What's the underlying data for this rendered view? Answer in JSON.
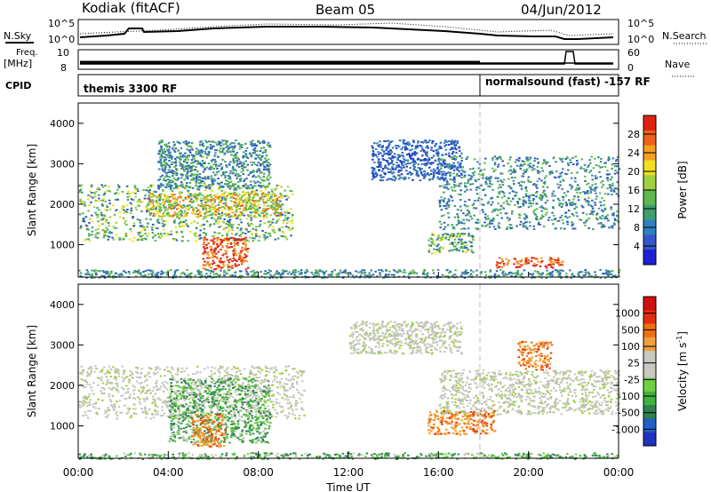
{
  "header": {
    "radar": "Kodiak (fitACF)",
    "beam": "Beam 05",
    "date": "04/Jun/2012"
  },
  "top_panels": {
    "nsky_label": "N.Sky",
    "nsky_ticks": [
      "10^5",
      "10^0"
    ],
    "nsearch_label": "N.Search",
    "nsearch_ticks": [
      "10^5",
      "10^0"
    ],
    "freq_label_1": "Freq.",
    "freq_label_2": "[MHz]",
    "freq_ticks": [
      "10",
      "8"
    ],
    "nave_label": "Nave",
    "nave_ticks": [
      "60",
      "0"
    ],
    "cpid_label": "CPID",
    "cpid_segments": [
      {
        "label": "themis 3300 RF",
        "start": "00:00",
        "end": "18:00"
      },
      {
        "label": "normalsound (fast) -157 RF",
        "start": "18:00",
        "end": "24:00"
      }
    ]
  },
  "chart_data": [
    {
      "type": "heatmap",
      "title": "",
      "ylabel": "Slant Range [km]",
      "xlabel": "",
      "x_unit": "hours UT",
      "xlim": [
        0,
        24
      ],
      "ylim": [
        200,
        4500
      ],
      "yticks": [
        1000,
        2000,
        3000,
        4000
      ],
      "colorbar_label": "Power [dB]",
      "colorbar_ticks": [
        "28",
        "24",
        "20",
        "16",
        "12",
        "8",
        "4"
      ],
      "colorbar_colors": [
        "#1f1fd6",
        "#3357c8",
        "#2f7fbf",
        "#3f9f6f",
        "#5fb94f",
        "#9fd13f",
        "#f0e020",
        "#f5a020",
        "#f06018",
        "#e02010"
      ],
      "bands": [
        {
          "x0": 0.0,
          "x1": 9.5,
          "y0": 1100,
          "y1": 2500,
          "level": "high"
        },
        {
          "x0": 3.0,
          "x1": 9.0,
          "y0": 1700,
          "y1": 2300,
          "level": "very-high"
        },
        {
          "x0": 5.5,
          "x1": 7.5,
          "y0": 400,
          "y1": 1200,
          "level": "peak"
        },
        {
          "x0": 3.5,
          "x1": 8.5,
          "y0": 2400,
          "y1": 3600,
          "level": "mid"
        },
        {
          "x0": 0.0,
          "x1": 24.0,
          "y0": 200,
          "y1": 400,
          "level": "mid"
        },
        {
          "x0": 13.0,
          "x1": 17.0,
          "y0": 2600,
          "y1": 3600,
          "level": "low"
        },
        {
          "x0": 16.0,
          "x1": 24.0,
          "y0": 1400,
          "y1": 3200,
          "level": "mid"
        },
        {
          "x0": 18.5,
          "x1": 21.5,
          "y0": 450,
          "y1": 700,
          "level": "peak"
        },
        {
          "x0": 15.5,
          "x1": 17.5,
          "y0": 800,
          "y1": 1300,
          "level": "high"
        }
      ]
    },
    {
      "type": "heatmap",
      "title": "",
      "ylabel": "Slant Range [km]",
      "xlabel": "Time UT",
      "x_unit": "hours UT",
      "xlim": [
        0,
        24
      ],
      "ylim": [
        200,
        4500
      ],
      "yticks": [
        1000,
        2000,
        3000,
        4000
      ],
      "xticks": [
        "00:00",
        "04:00",
        "08:00",
        "12:00",
        "16:00",
        "20:00",
        "00:00"
      ],
      "colorbar_label": "Velocity [m s^-1]",
      "colorbar_ticks": [
        "1000",
        "500",
        "100",
        "25",
        "-25",
        "-100",
        "-500",
        "-1000"
      ],
      "colorbar_colors": [
        "#2030c0",
        "#2060c8",
        "#2f7f4f",
        "#40b040",
        "#70d040",
        "#c8c8c0",
        "#c8c8c0",
        "#f0a040",
        "#f07010",
        "#e03010",
        "#d01010"
      ],
      "bands": [
        {
          "x0": 0.0,
          "x1": 10.0,
          "y0": 1200,
          "y1": 2500,
          "level": "grey"
        },
        {
          "x0": 4.0,
          "x1": 8.5,
          "y0": 600,
          "y1": 2200,
          "level": "green"
        },
        {
          "x0": 5.0,
          "x1": 6.5,
          "y0": 500,
          "y1": 1300,
          "level": "orange"
        },
        {
          "x0": 0.0,
          "x1": 24.0,
          "y0": 200,
          "y1": 350,
          "level": "green"
        },
        {
          "x0": 15.5,
          "x1": 18.5,
          "y0": 800,
          "y1": 1400,
          "level": "orange"
        },
        {
          "x0": 19.5,
          "x1": 21.0,
          "y0": 2400,
          "y1": 3100,
          "level": "orange"
        },
        {
          "x0": 16.0,
          "x1": 24.0,
          "y0": 1300,
          "y1": 2400,
          "level": "grey"
        },
        {
          "x0": 12.0,
          "x1": 17.0,
          "y0": 2800,
          "y1": 3600,
          "level": "grey"
        }
      ]
    }
  ]
}
